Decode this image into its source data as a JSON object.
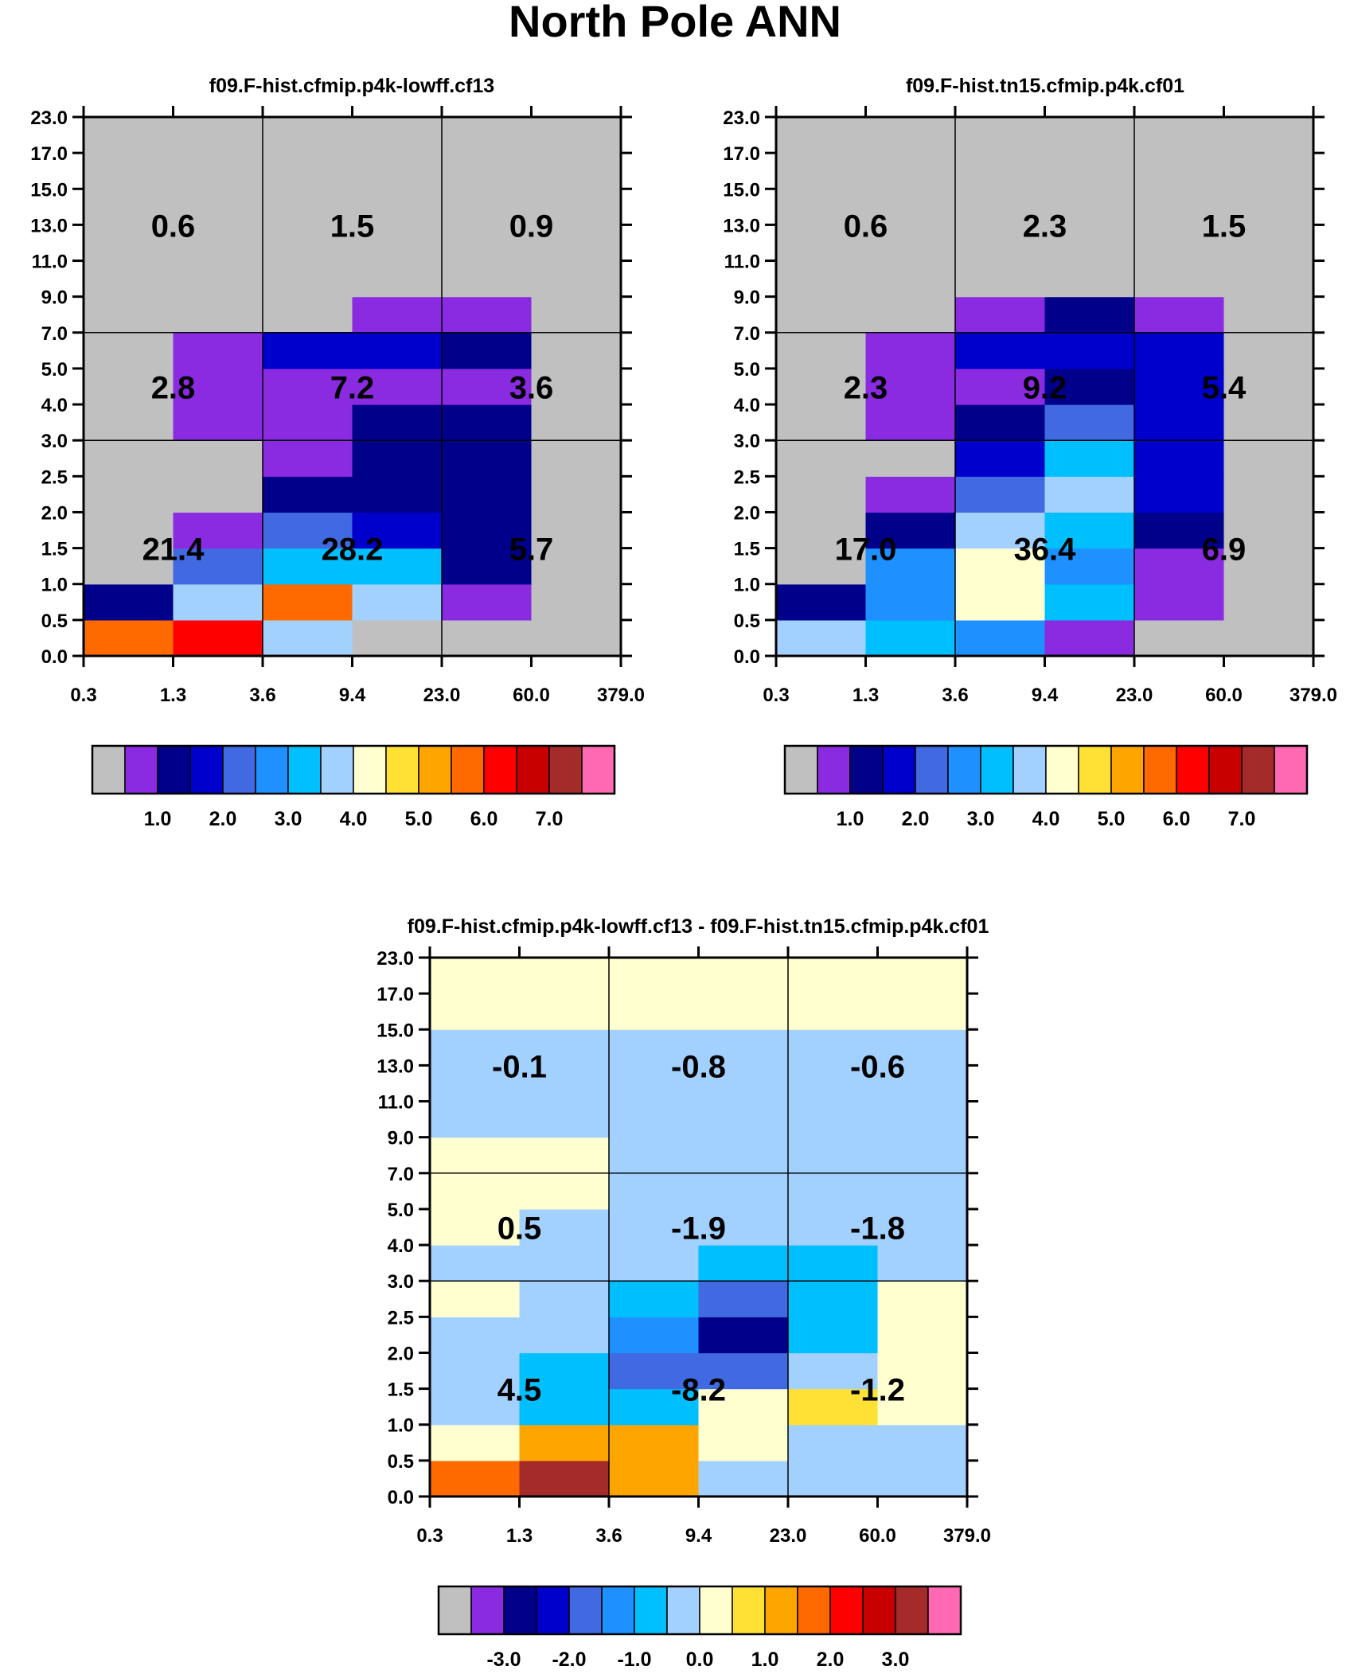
{
  "figure_title": "North Pole ANN",
  "palette": {
    "cld": [
      "#c0c0c0",
      "#8a2be2",
      "#00008b",
      "#0000cd",
      "#4169e1",
      "#1e90ff",
      "#00bfff",
      "#a3d1ff",
      "#ffffd0",
      "#ffe135",
      "#ffa500",
      "#ff6a00",
      "#ff0000",
      "#c80000",
      "#a52a2a",
      "#ff69b4"
    ],
    "diff": [
      "#c0c0c0",
      "#8a2be2",
      "#00008b",
      "#0000cd",
      "#4169e1",
      "#1e90ff",
      "#00bfff",
      "#a3d1ff",
      "#ffffd0",
      "#ffe135",
      "#ffa500",
      "#ff6a00",
      "#ff0000",
      "#c80000",
      "#a52a2a",
      "#ff69b4"
    ]
  },
  "chart_data": [
    {
      "type": "heatmap",
      "title": "f09.F-hist.cfmip.p4k-lowff.cf13",
      "x_ticks": [
        "0.3",
        "1.3",
        "3.6",
        "9.4",
        "23.0",
        "60.0",
        "379.0"
      ],
      "y_ticks": [
        "0.0",
        "0.5",
        "1.0",
        "1.5",
        "2.0",
        "2.5",
        "3.0",
        "4.0",
        "5.0",
        "7.0",
        "9.0",
        "11.0",
        "13.0",
        "15.0",
        "17.0",
        "23.0"
      ],
      "cell_colors_bottom_to_top": [
        [
          11,
          12,
          7,
          0,
          0,
          0
        ],
        [
          2,
          7,
          11,
          7,
          1,
          0
        ],
        [
          0,
          4,
          6,
          6,
          2,
          0
        ],
        [
          0,
          1,
          4,
          3,
          2,
          0
        ],
        [
          0,
          0,
          2,
          2,
          2,
          0
        ],
        [
          0,
          0,
          1,
          2,
          2,
          0
        ],
        [
          0,
          1,
          1,
          2,
          2,
          0
        ],
        [
          0,
          1,
          1,
          1,
          1,
          0
        ],
        [
          0,
          1,
          3,
          3,
          2,
          0
        ],
        [
          0,
          0,
          0,
          1,
          1,
          0
        ],
        [
          0,
          0,
          0,
          0,
          0,
          0
        ],
        [
          0,
          0,
          0,
          0,
          0,
          0
        ],
        [
          0,
          0,
          0,
          0,
          0,
          0
        ],
        [
          0,
          0,
          0,
          0,
          0,
          0
        ],
        [
          0,
          0,
          0,
          0,
          0,
          0
        ]
      ],
      "region_totals": {
        "low": [
          "21.4",
          "28.2",
          "5.7"
        ],
        "mid": [
          "2.8",
          "7.2",
          "3.6"
        ],
        "high": [
          "0.6",
          "1.5",
          "0.9"
        ]
      },
      "colorbar_labels": [
        "1.0",
        "2.0",
        "3.0",
        "4.0",
        "5.0",
        "6.0",
        "7.0"
      ]
    },
    {
      "type": "heatmap",
      "title": "f09.F-hist.tn15.cfmip.p4k.cf01",
      "x_ticks": [
        "0.3",
        "1.3",
        "3.6",
        "9.4",
        "23.0",
        "60.0",
        "379.0"
      ],
      "y_ticks": [
        "0.0",
        "0.5",
        "1.0",
        "1.5",
        "2.0",
        "2.5",
        "3.0",
        "4.0",
        "5.0",
        "7.0",
        "9.0",
        "11.0",
        "13.0",
        "15.0",
        "17.0",
        "23.0"
      ],
      "cell_colors_bottom_to_top": [
        [
          7,
          6,
          5,
          1,
          0,
          0
        ],
        [
          2,
          5,
          8,
          6,
          1,
          0
        ],
        [
          0,
          5,
          8,
          5,
          1,
          0
        ],
        [
          0,
          2,
          7,
          6,
          2,
          0
        ],
        [
          0,
          1,
          4,
          7,
          3,
          0
        ],
        [
          0,
          0,
          3,
          6,
          3,
          0
        ],
        [
          0,
          1,
          2,
          4,
          3,
          0
        ],
        [
          0,
          1,
          1,
          2,
          3,
          0
        ],
        [
          0,
          1,
          3,
          3,
          3,
          0
        ],
        [
          0,
          0,
          1,
          2,
          1,
          0
        ],
        [
          0,
          0,
          0,
          0,
          0,
          0
        ],
        [
          0,
          0,
          0,
          0,
          0,
          0
        ],
        [
          0,
          0,
          0,
          0,
          0,
          0
        ],
        [
          0,
          0,
          0,
          0,
          0,
          0
        ],
        [
          0,
          0,
          0,
          0,
          0,
          0
        ]
      ],
      "region_totals": {
        "low": [
          "17.0",
          "36.4",
          "6.9"
        ],
        "mid": [
          "2.3",
          "9.2",
          "5.4"
        ],
        "high": [
          "0.6",
          "2.3",
          "1.5"
        ]
      },
      "colorbar_labels": [
        "1.0",
        "2.0",
        "3.0",
        "4.0",
        "5.0",
        "6.0",
        "7.0"
      ]
    },
    {
      "type": "heatmap",
      "title": "f09.F-hist.cfmip.p4k-lowff.cf13 - f09.F-hist.tn15.cfmip.p4k.cf01",
      "x_ticks": [
        "0.3",
        "1.3",
        "3.6",
        "9.4",
        "23.0",
        "60.0",
        "379.0"
      ],
      "y_ticks": [
        "0.0",
        "0.5",
        "1.0",
        "1.5",
        "2.0",
        "2.5",
        "3.0",
        "4.0",
        "5.0",
        "7.0",
        "9.0",
        "11.0",
        "13.0",
        "15.0",
        "17.0",
        "23.0"
      ],
      "cell_colors_bottom_to_top": [
        [
          11,
          14,
          10,
          7,
          7,
          7
        ],
        [
          8,
          10,
          10,
          8,
          7,
          7
        ],
        [
          7,
          6,
          6,
          8,
          9,
          8
        ],
        [
          7,
          6,
          4,
          4,
          7,
          8
        ],
        [
          7,
          7,
          5,
          2,
          6,
          8
        ],
        [
          8,
          7,
          6,
          4,
          6,
          8
        ],
        [
          7,
          7,
          7,
          6,
          6,
          7
        ],
        [
          8,
          7,
          7,
          7,
          7,
          7
        ],
        [
          8,
          8,
          7,
          7,
          7,
          7
        ],
        [
          8,
          8,
          7,
          7,
          7,
          7
        ],
        [
          7,
          7,
          7,
          7,
          7,
          7
        ],
        [
          7,
          7,
          7,
          7,
          7,
          7
        ],
        [
          7,
          7,
          7,
          7,
          7,
          7
        ],
        [
          8,
          8,
          8,
          8,
          8,
          8
        ],
        [
          8,
          8,
          8,
          8,
          8,
          8
        ]
      ],
      "region_totals": {
        "low": [
          "4.5",
          "-8.2",
          "-1.2"
        ],
        "mid": [
          "0.5",
          "-1.9",
          "-1.8"
        ],
        "high": [
          "-0.1",
          "-0.8",
          "-0.6"
        ]
      },
      "colorbar_labels": [
        "-3.0",
        "-2.0",
        "-1.0",
        "0.0",
        "1.0",
        "2.0",
        "3.0"
      ]
    }
  ]
}
